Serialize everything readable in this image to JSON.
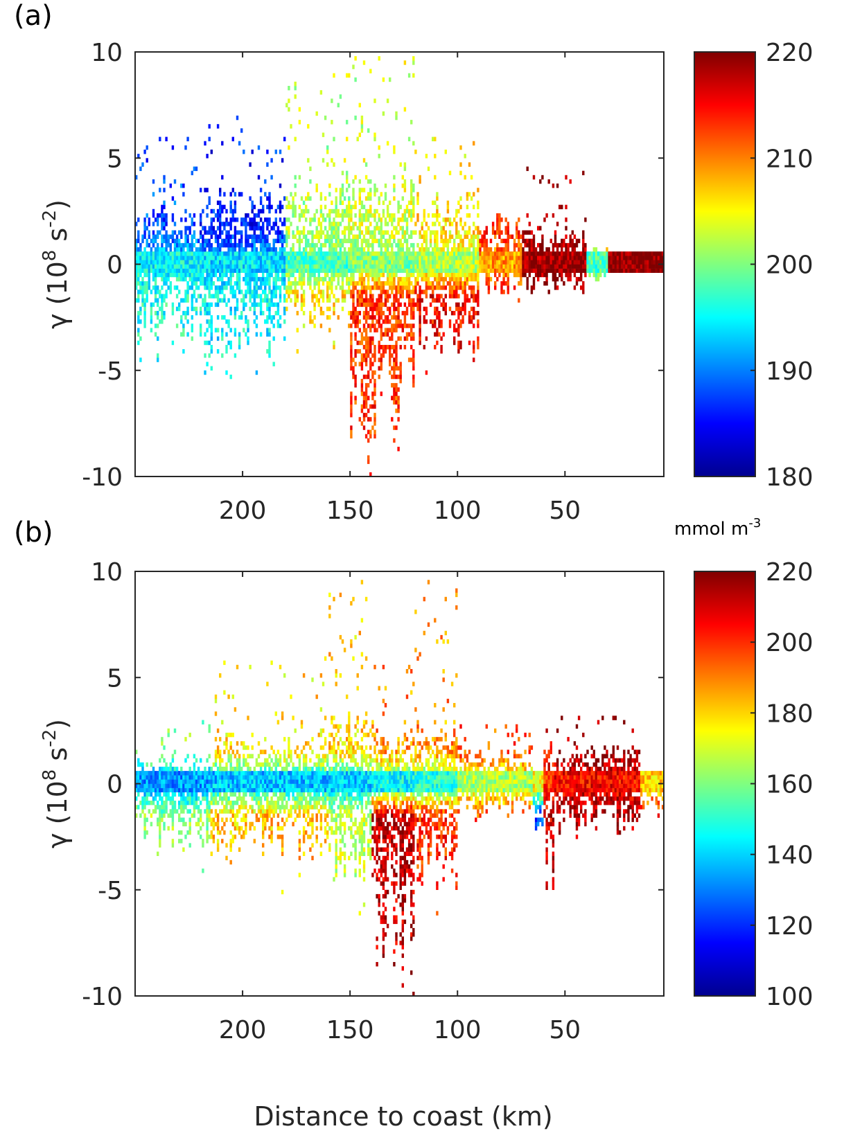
{
  "chart_data": [
    {
      "type": "heatmap",
      "panel_label": "(a)",
      "xlabel": "",
      "ylabel": "γ (10",
      "ylabel_exp1": "8",
      "ylabel_mid": " s",
      "ylabel_exp2": "-2",
      "ylabel_end": ")",
      "xlim": [
        250,
        4
      ],
      "x_reversed": true,
      "ylim": [
        -10,
        10
      ],
      "xticks": [
        200,
        150,
        100,
        50
      ],
      "yticks": [
        -10,
        -5,
        0,
        5,
        10
      ],
      "colormap": "jet",
      "clim": [
        180,
        220
      ],
      "colorbar_ticks": [
        180,
        190,
        200,
        210,
        220
      ],
      "segments": [
        {
          "x_from": 250,
          "x_to": 220,
          "gamma_max": 2.5,
          "gamma_min": -3.5,
          "spike_max": 6,
          "value_core": 195,
          "value_upper": 188,
          "value_lower": 196
        },
        {
          "x_from": 220,
          "x_to": 180,
          "gamma_max": 3.2,
          "gamma_min": -4,
          "spike_max": 7,
          "value_core": 194,
          "value_upper": 186,
          "value_lower": 195
        },
        {
          "x_from": 180,
          "x_to": 150,
          "gamma_max": 4,
          "gamma_min": -3,
          "spike_max": 9,
          "value_core": 198,
          "value_upper": 202,
          "value_lower": 206
        },
        {
          "x_from": 150,
          "x_to": 120,
          "gamma_max": 4,
          "gamma_min": -8,
          "spike_max": 10,
          "value_core": 200,
          "value_upper": 203,
          "value_lower": 213
        },
        {
          "x_from": 120,
          "x_to": 90,
          "gamma_max": 3,
          "gamma_min": -4,
          "spike_max": 6,
          "value_core": 202,
          "value_upper": 206,
          "value_lower": 215
        },
        {
          "x_from": 90,
          "x_to": 70,
          "gamma_max": 2,
          "gamma_min": -1.5,
          "spike_max": 3,
          "value_core": 209,
          "value_upper": 213,
          "value_lower": 214
        },
        {
          "x_from": 70,
          "x_to": 40,
          "gamma_max": 1.6,
          "gamma_min": -1.3,
          "spike_max": 4.5,
          "value_core": 219,
          "value_upper": 219,
          "value_lower": 219
        },
        {
          "x_from": 40,
          "x_to": 30,
          "gamma_max": 0.7,
          "gamma_min": -0.8,
          "spike_max": 1.2,
          "value_core": 198,
          "value_upper": 212,
          "value_lower": 205
        },
        {
          "x_from": 30,
          "x_to": 4,
          "gamma_max": 0.3,
          "gamma_min": -0.1,
          "spike_max": 0.3,
          "value_core": 220,
          "value_upper": 220,
          "value_lower": 220
        }
      ]
    },
    {
      "type": "heatmap",
      "panel_label": "(b)",
      "xlabel": "Distance to coast (km)",
      "ylabel": "γ (10",
      "ylabel_exp1": "8",
      "ylabel_mid": " s",
      "ylabel_exp2": "-2",
      "ylabel_end": ")",
      "xlim": [
        250,
        4
      ],
      "x_reversed": true,
      "ylim": [
        -10,
        10
      ],
      "xticks": [
        200,
        150,
        100,
        50
      ],
      "yticks": [
        -10,
        -5,
        0,
        5,
        10
      ],
      "colormap": "jet",
      "clim": [
        100,
        220
      ],
      "colorbar_ticks": [
        100,
        120,
        140,
        160,
        180,
        200,
        220
      ],
      "segments": [
        {
          "x_from": 250,
          "x_to": 215,
          "gamma_max": 1.2,
          "gamma_min": -3,
          "spike_max": 3,
          "value_core": 133,
          "value_upper": 160,
          "value_lower": 163
        },
        {
          "x_from": 215,
          "x_to": 160,
          "gamma_max": 2.2,
          "gamma_min": -3.5,
          "spike_max": 6,
          "value_core": 138,
          "value_upper": 178,
          "value_lower": 182
        },
        {
          "x_from": 160,
          "x_to": 140,
          "gamma_max": 3,
          "gamma_min": -4.5,
          "spike_max": 9.5,
          "value_core": 140,
          "value_upper": 180,
          "value_lower": 168
        },
        {
          "x_from": 140,
          "x_to": 120,
          "gamma_max": 2.2,
          "gamma_min": -8,
          "spike_max": 5.5,
          "value_core": 145,
          "value_upper": 188,
          "value_lower": 212
        },
        {
          "x_from": 120,
          "x_to": 100,
          "gamma_max": 2.8,
          "gamma_min": -4.5,
          "spike_max": 9.5,
          "value_core": 150,
          "value_upper": 188,
          "value_lower": 200
        },
        {
          "x_from": 100,
          "x_to": 65,
          "gamma_max": 1.6,
          "gamma_min": -1.5,
          "spike_max": 3,
          "value_core": 165,
          "value_upper": 196,
          "value_lower": 195
        },
        {
          "x_from": 65,
          "x_to": 60,
          "gamma_max": 0.5,
          "gamma_min": -2.5,
          "spike_max": 0.5,
          "value_core": 175,
          "value_upper": 190,
          "value_lower": 125
        },
        {
          "x_from": 60,
          "x_to": 55,
          "gamma_max": 2.2,
          "gamma_min": -4.6,
          "spike_max": 2.5,
          "value_core": 200,
          "value_upper": 205,
          "value_lower": 210
        },
        {
          "x_from": 55,
          "x_to": 15,
          "gamma_max": 1.6,
          "gamma_min": -2.2,
          "spike_max": 3.2,
          "value_core": 205,
          "value_upper": 218,
          "value_lower": 216
        },
        {
          "x_from": 15,
          "x_to": 4,
          "gamma_max": 0.7,
          "gamma_min": -1.2,
          "spike_max": 0.8,
          "value_core": 180,
          "value_upper": 205,
          "value_lower": 200
        }
      ]
    }
  ],
  "colorbar_units": "mmol m",
  "colorbar_units_exp": "-3"
}
